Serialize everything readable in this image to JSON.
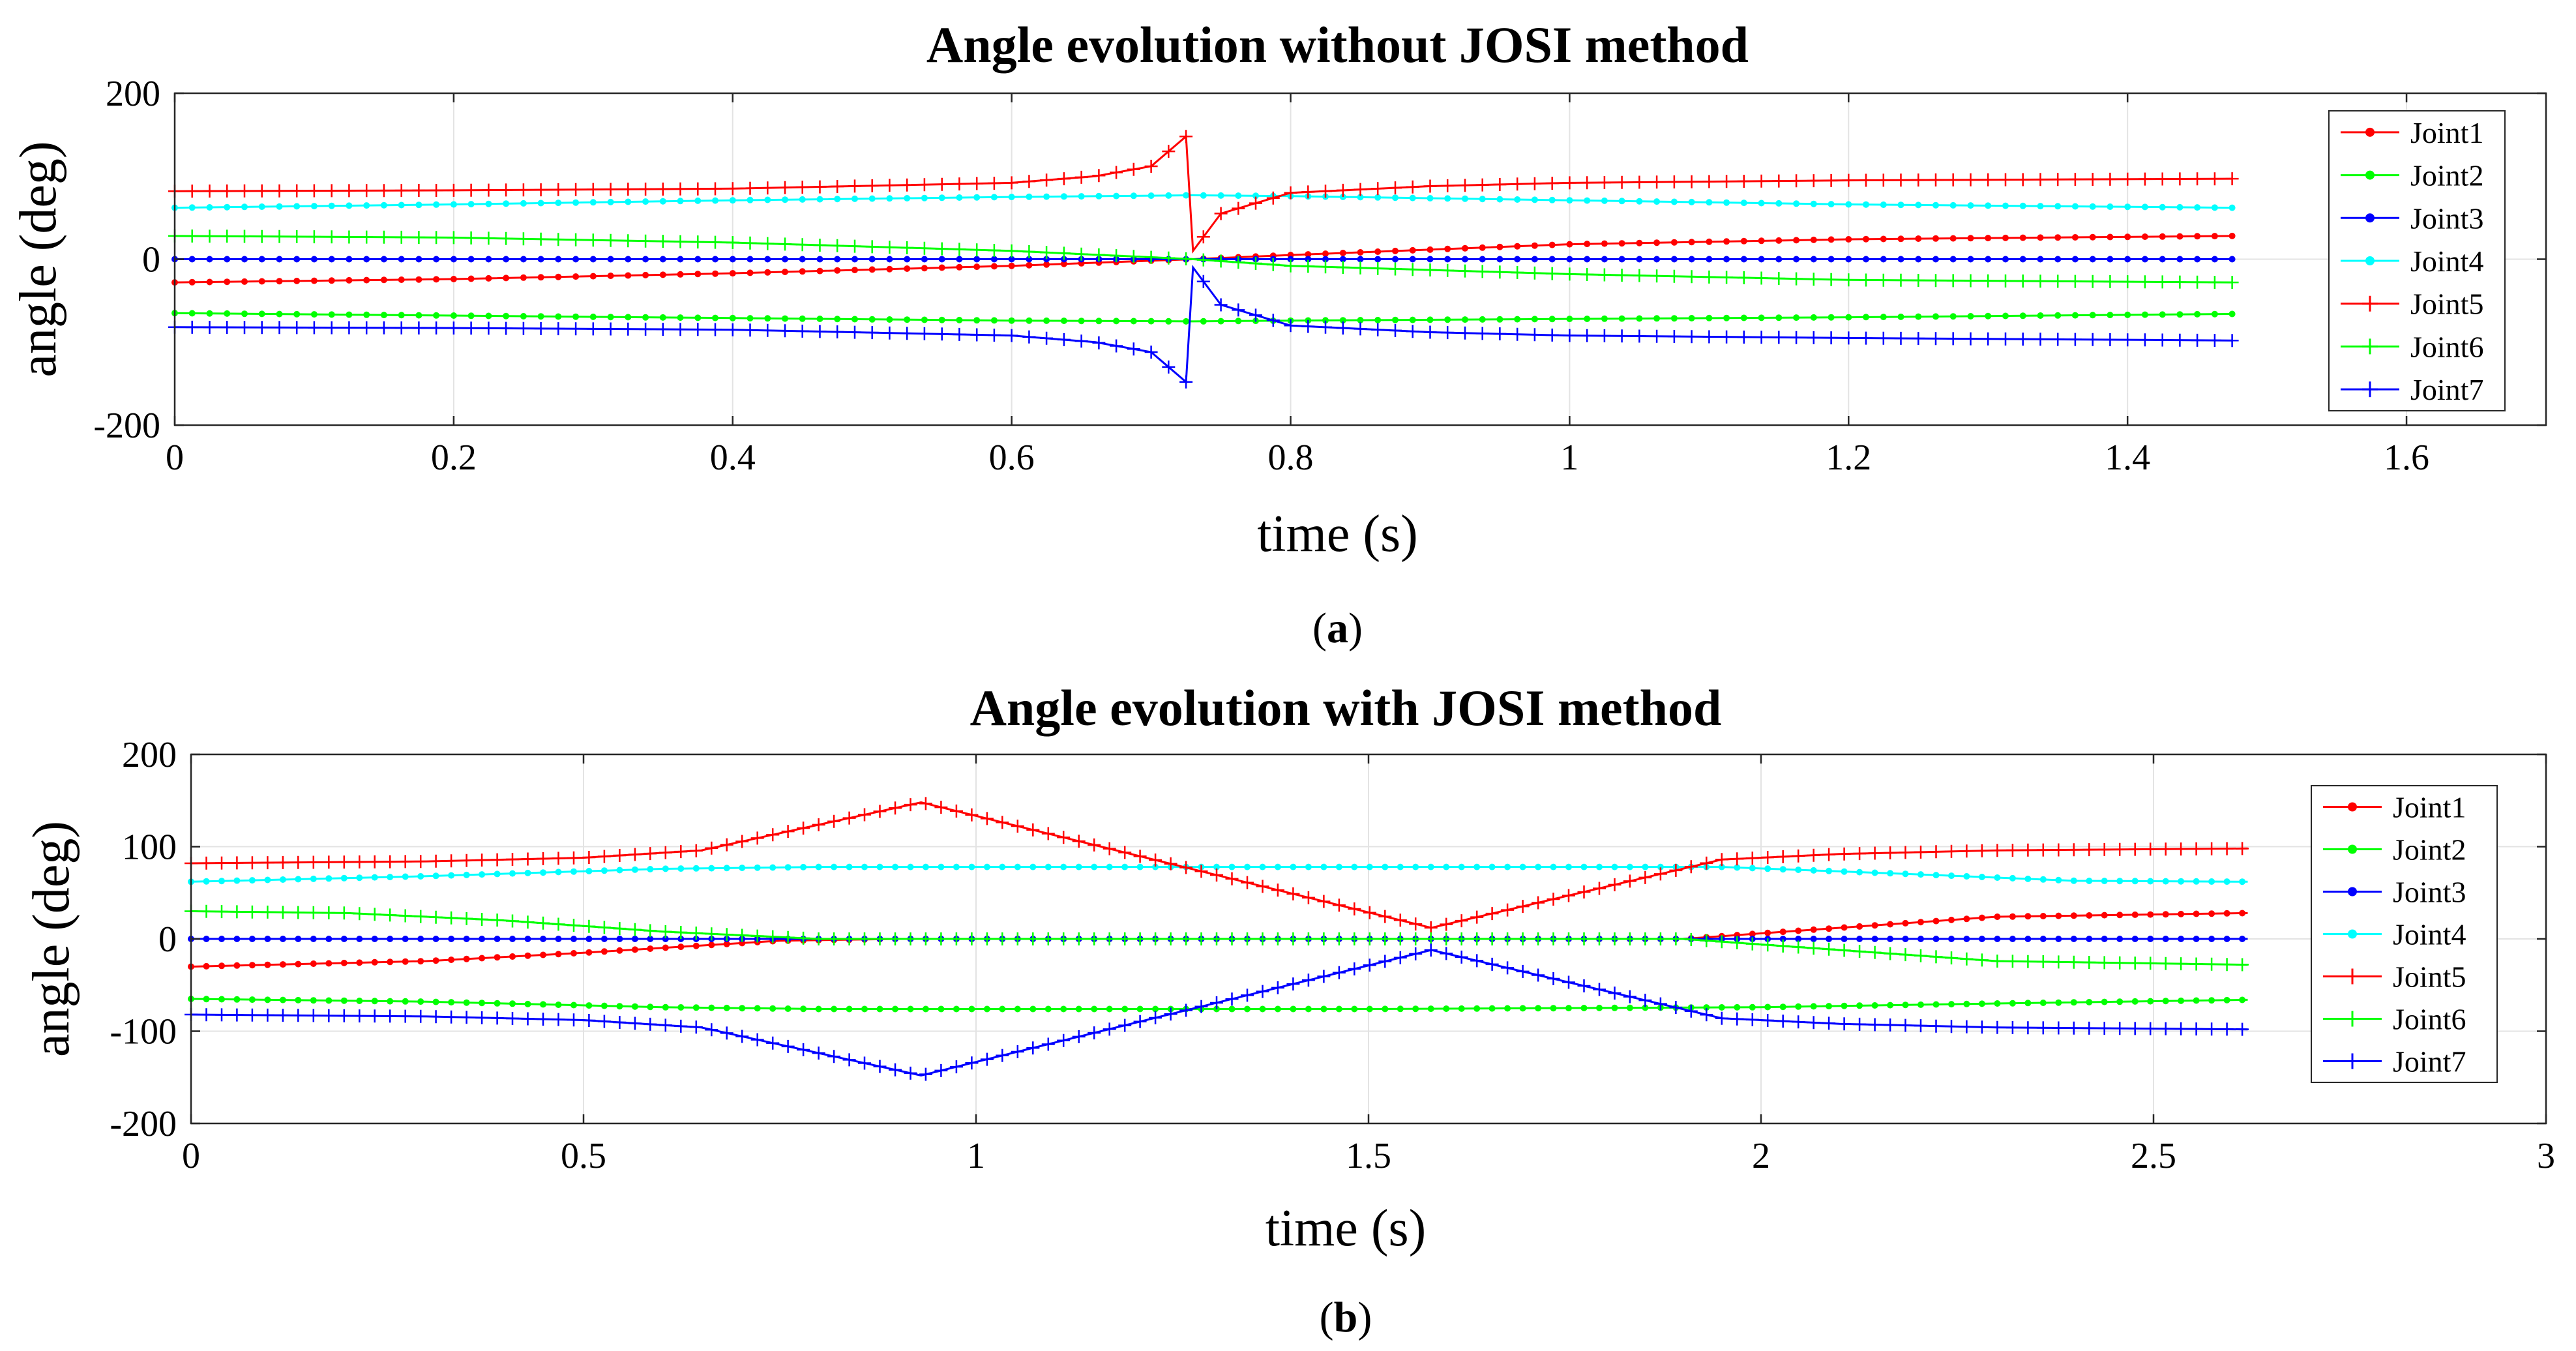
{
  "chart_data": [
    {
      "type": "line",
      "title": "Angle evolution without JOSI method",
      "xlabel": "time (s)",
      "ylabel": "angle (deg)",
      "caption_label": "a",
      "xlim": [
        0,
        1.7
      ],
      "ylim": [
        -200,
        200
      ],
      "xticks": [
        0,
        0.2,
        0.4,
        0.6,
        0.8,
        1,
        1.2,
        1.4,
        1.6
      ],
      "xtick_labels": [
        "0",
        "0.2",
        "0.4",
        "0.6",
        "0.8",
        "1",
        "1.2",
        "1.4",
        "1.6"
      ],
      "yticks": [
        -200,
        0,
        200
      ],
      "ytick_labels": [
        "-200",
        "0",
        "200"
      ],
      "grid": true,
      "legend_position": "right",
      "series": [
        {
          "name": "Joint1",
          "color": "#ff0000",
          "marker": "dot",
          "x": [
            0,
            0.2,
            0.4,
            0.6,
            0.73,
            0.8,
            1.0,
            1.2,
            1.475
          ],
          "y": [
            -28,
            -24,
            -17,
            -8,
            0,
            5,
            18,
            24,
            28
          ]
        },
        {
          "name": "Joint2",
          "color": "#00ff00",
          "marker": "dot",
          "x": [
            0,
            0.2,
            0.4,
            0.6,
            0.73,
            0.8,
            1.0,
            1.2,
            1.475
          ],
          "y": [
            -65,
            -68,
            -71,
            -74,
            -75,
            -74,
            -72,
            -70,
            -66
          ]
        },
        {
          "name": "Joint3",
          "color": "#0000ff",
          "marker": "dot",
          "x": [
            0,
            0.5,
            1.0,
            1.475
          ],
          "y": [
            0,
            0,
            0,
            0
          ]
        },
        {
          "name": "Joint4",
          "color": "#00ffff",
          "marker": "dot",
          "x": [
            0,
            0.2,
            0.4,
            0.6,
            0.73,
            0.8,
            1.0,
            1.2,
            1.475
          ],
          "y": [
            62,
            66,
            71,
            75,
            77,
            76,
            71,
            66,
            62
          ]
        },
        {
          "name": "Joint5",
          "color": "#ff0000",
          "marker": "plus",
          "x": [
            0,
            0.2,
            0.4,
            0.6,
            0.66,
            0.7,
            0.725,
            0.73,
            0.75,
            0.8,
            0.9,
            1.0,
            1.2,
            1.475
          ],
          "y": [
            82,
            83,
            85,
            92,
            100,
            112,
            148,
            10,
            55,
            80,
            88,
            92,
            95,
            97
          ]
        },
        {
          "name": "Joint6",
          "color": "#00ff00",
          "marker": "plus",
          "x": [
            0,
            0.2,
            0.4,
            0.6,
            0.73,
            0.8,
            1.0,
            1.2,
            1.475
          ],
          "y": [
            28,
            26,
            20,
            10,
            0,
            -8,
            -18,
            -25,
            -28
          ]
        },
        {
          "name": "Joint7",
          "color": "#0000ff",
          "marker": "plus",
          "x": [
            0,
            0.2,
            0.4,
            0.6,
            0.66,
            0.7,
            0.725,
            0.73,
            0.75,
            0.8,
            0.9,
            1.0,
            1.2,
            1.475
          ],
          "y": [
            -82,
            -83,
            -85,
            -92,
            -100,
            -112,
            -148,
            -10,
            -55,
            -80,
            -88,
            -92,
            -95,
            -98
          ]
        }
      ]
    },
    {
      "type": "line",
      "title": "Angle evolution with JOSI method",
      "xlabel": "time (s)",
      "ylabel": "angle (deg)",
      "caption_label": "b",
      "xlim": [
        0,
        3
      ],
      "ylim": [
        -200,
        200
      ],
      "xticks": [
        0,
        0.5,
        1,
        1.5,
        2,
        2.5,
        3
      ],
      "xtick_labels": [
        "0",
        "0.5",
        "1",
        "1.5",
        "2",
        "2.5",
        "3"
      ],
      "yticks": [
        -200,
        -100,
        0,
        100,
        200
      ],
      "ytick_labels": [
        "-200",
        "-100",
        "0",
        "100",
        "200"
      ],
      "grid": true,
      "legend_position": "right",
      "series": [
        {
          "name": "Joint1",
          "color": "#ff0000",
          "marker": "dot",
          "x": [
            0,
            0.3,
            0.5,
            0.75,
            0.9,
            1.5,
            1.9,
            2.1,
            2.3,
            2.62
          ],
          "y": [
            -30,
            -24,
            -15,
            -2,
            0,
            0,
            0,
            12,
            24,
            28
          ]
        },
        {
          "name": "Joint2",
          "color": "#00ff00",
          "marker": "dot",
          "x": [
            0,
            0.3,
            0.6,
            0.8,
            1.5,
            2.0,
            2.3,
            2.62
          ],
          "y": [
            -65,
            -68,
            -74,
            -76,
            -76,
            -74,
            -70,
            -66
          ]
        },
        {
          "name": "Joint3",
          "color": "#0000ff",
          "marker": "dot",
          "x": [
            0,
            1.0,
            2.0,
            2.62
          ],
          "y": [
            0,
            0,
            0,
            0
          ]
        },
        {
          "name": "Joint4",
          "color": "#00ffff",
          "marker": "dot",
          "x": [
            0,
            0.3,
            0.6,
            0.8,
            1.5,
            1.95,
            2.2,
            2.4,
            2.62
          ],
          "y": [
            62,
            68,
            76,
            78,
            78,
            78,
            70,
            63,
            62
          ]
        },
        {
          "name": "Joint5",
          "color": "#ff0000",
          "marker": "plus",
          "x": [
            0,
            0.3,
            0.5,
            0.65,
            0.93,
            1.58,
            1.95,
            2.1,
            2.3,
            2.62
          ],
          "y": [
            82,
            84,
            88,
            96,
            148,
            12,
            86,
            92,
            96,
            98
          ]
        },
        {
          "name": "Joint6",
          "color": "#00ff00",
          "marker": "plus",
          "x": [
            0,
            0.2,
            0.4,
            0.6,
            0.8,
            1.5,
            1.9,
            2.1,
            2.3,
            2.62
          ],
          "y": [
            30,
            28,
            20,
            8,
            0,
            0,
            0,
            -12,
            -24,
            -28
          ]
        },
        {
          "name": "Joint7",
          "color": "#0000ff",
          "marker": "plus",
          "x": [
            0,
            0.3,
            0.5,
            0.65,
            0.93,
            1.58,
            1.95,
            2.1,
            2.3,
            2.62
          ],
          "y": [
            -82,
            -84,
            -88,
            -96,
            -148,
            -12,
            -86,
            -92,
            -96,
            -98
          ]
        }
      ]
    }
  ]
}
